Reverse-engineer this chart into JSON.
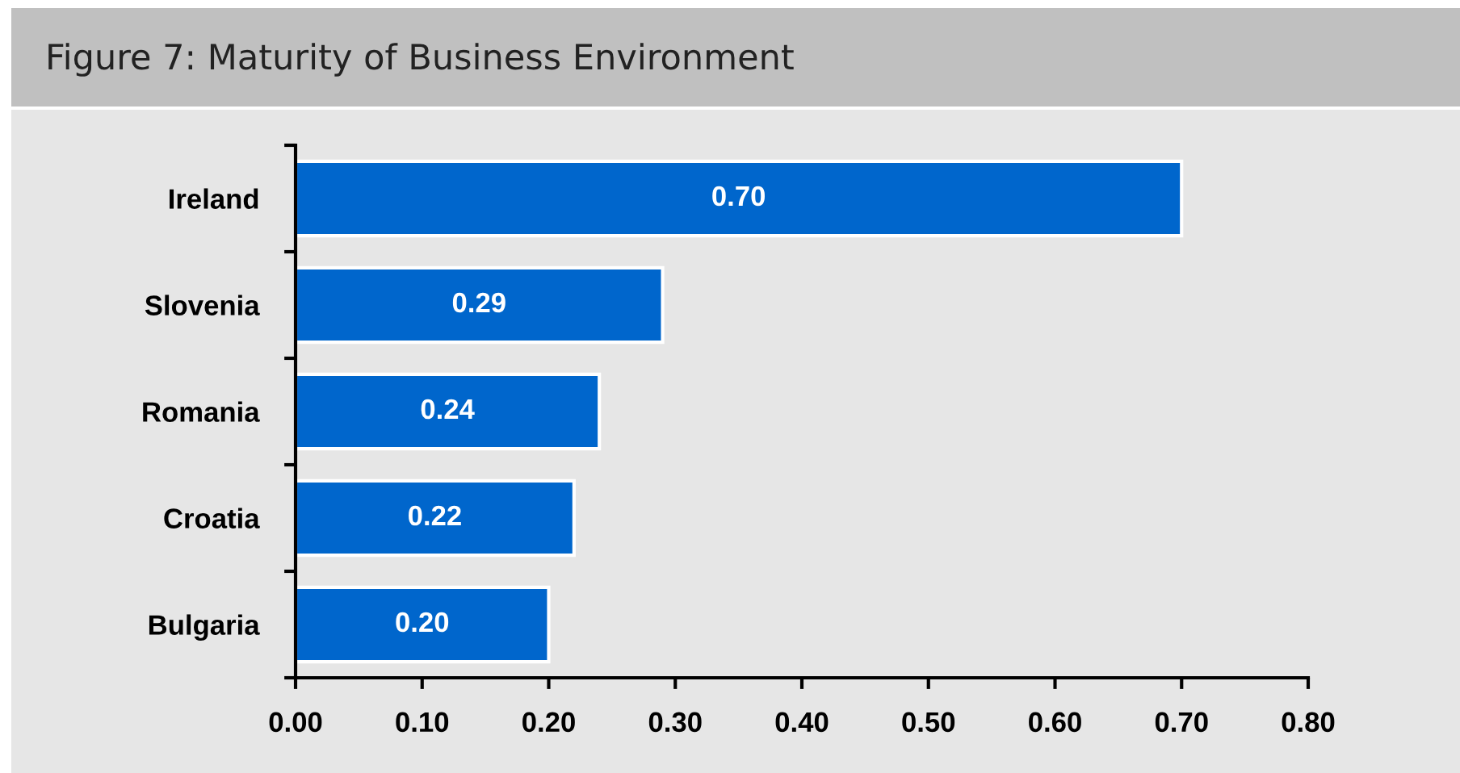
{
  "chart_data": {
    "type": "bar",
    "orientation": "horizontal",
    "title": "Figure 7: Maturity of Business Environment",
    "categories": [
      "Ireland",
      "Slovenia",
      "Romania",
      "Croatia",
      "Bulgaria"
    ],
    "values": [
      0.7,
      0.29,
      0.24,
      0.22,
      0.2
    ],
    "color": "#0066cc",
    "value_labels": [
      "0.70",
      "0.29",
      "0.24",
      "0.22",
      "0.20"
    ],
    "xlim": [
      0,
      0.8
    ],
    "xticks": [
      {
        "value": 0,
        "label": "0.00"
      },
      {
        "value": 0.1,
        "label": "0.10"
      },
      {
        "value": 0.2,
        "label": "0.20"
      },
      {
        "value": 0.3,
        "label": "0.30"
      },
      {
        "value": 0.4,
        "label": "0.40"
      },
      {
        "value": 0.5,
        "label": "0.50"
      },
      {
        "value": 0.6,
        "label": "0.60"
      },
      {
        "value": 0.7,
        "label": "0.70"
      },
      {
        "value": 0.8,
        "label": "0.80"
      }
    ]
  }
}
